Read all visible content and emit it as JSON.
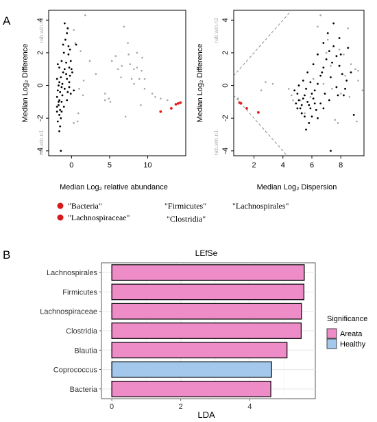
{
  "panels": {
    "a_label": "A",
    "b_label": "B"
  },
  "legend_a": {
    "items": [
      {
        "text": "\"Bacteria\"",
        "marker": true
      },
      {
        "text": "\"Lachnospiraceae\"",
        "marker": true
      },
      {
        "text": "\"Firmicutes\"",
        "marker": false
      },
      {
        "text": "\"Clostridia\"",
        "marker": false
      },
      {
        "text": "\"Lachnospirales\"",
        "marker": false
      }
    ],
    "marker_color": "#d7191c"
  },
  "chart_data": [
    {
      "type": "scatter",
      "title": "",
      "xlabel": "Median  Log₂  relative abundance",
      "ylabel": "Median  Log₂  Difference",
      "side_label_top": "rab.win.n2",
      "side_label_bottom": "rab.win.n1",
      "xlim": [
        -3,
        15
      ],
      "ylim": [
        -4.3,
        4.6
      ],
      "xticks": [
        0,
        5,
        10
      ],
      "yticks": [
        -4,
        -2,
        0,
        2,
        4
      ],
      "colors": {
        "black": "#000000",
        "grey": "#a6a6a6",
        "red": "#e41a1c"
      },
      "series": [
        {
          "color": "red",
          "points": [
            [
              11.7,
              -1.6
            ],
            [
              13.1,
              -1.4
            ],
            [
              13.7,
              -1.15
            ],
            [
              14.0,
              -1.1
            ],
            [
              14.3,
              -1.05
            ]
          ]
        },
        {
          "color": "grey",
          "points": [
            [
              1.8,
              4.3
            ],
            [
              0.3,
              3.4
            ],
            [
              0.5,
              2.6
            ],
            [
              1.2,
              2.1
            ],
            [
              2.4,
              1.5
            ],
            [
              3.2,
              0.7
            ],
            [
              1.6,
              0.3
            ],
            [
              1.0,
              -0.2
            ],
            [
              1.5,
              -0.6
            ],
            [
              0.9,
              -1.7
            ],
            [
              0.8,
              -2.2
            ],
            [
              0.3,
              -2.3
            ],
            [
              4.4,
              -0.9
            ],
            [
              4.9,
              -0.8
            ],
            [
              4.4,
              -0.5
            ],
            [
              5.1,
              -1.0
            ],
            [
              5.3,
              1.5
            ],
            [
              5.8,
              1.8
            ],
            [
              6.1,
              1.0
            ],
            [
              6.9,
              3.6
            ],
            [
              7.4,
              2.6
            ],
            [
              7.5,
              1.9
            ],
            [
              6.6,
              1.2
            ],
            [
              7.7,
              1.3
            ],
            [
              8.2,
              1.0
            ],
            [
              8.6,
              1.1
            ],
            [
              8.9,
              0.4
            ],
            [
              9.2,
              0.9
            ],
            [
              9.6,
              -0.2
            ],
            [
              9.1,
              -1.2
            ],
            [
              10.6,
              -0.5
            ],
            [
              11.0,
              -0.7
            ],
            [
              11.7,
              -0.8
            ],
            [
              12.6,
              -0.9
            ],
            [
              7.1,
              -1.9
            ],
            [
              6.5,
              0.5
            ],
            [
              8.2,
              0.1
            ],
            [
              8.6,
              2.0
            ],
            [
              9.3,
              1.7
            ],
            [
              7.9,
              0.4
            ],
            [
              9.6,
              0.4
            ]
          ]
        },
        {
          "color": "black",
          "points": [
            [
              -0.9,
              3.8
            ],
            [
              -0.6,
              3.2
            ],
            [
              -1.1,
              2.5
            ],
            [
              -0.4,
              2.4
            ],
            [
              -0.2,
              2.2
            ],
            [
              -1.0,
              2.0
            ],
            [
              -0.4,
              1.9
            ],
            [
              -1.3,
              1.5
            ],
            [
              -0.7,
              1.4
            ],
            [
              -0.1,
              1.5
            ],
            [
              -1.6,
              1.1
            ],
            [
              -0.9,
              1.0
            ],
            [
              -0.3,
              1.1
            ],
            [
              0.1,
              0.8
            ],
            [
              -1.9,
              0.4
            ],
            [
              -1.4,
              0.5
            ],
            [
              -0.6,
              0.4
            ],
            [
              -1.7,
              0.0
            ],
            [
              -1.3,
              -0.1
            ],
            [
              -1.8,
              -0.3
            ],
            [
              -1.5,
              -0.4
            ],
            [
              -1.2,
              -0.6
            ],
            [
              -1.9,
              -0.7
            ],
            [
              -1.6,
              -0.9
            ],
            [
              -1.3,
              -1.0
            ],
            [
              -1.7,
              -1.2
            ],
            [
              -1.5,
              -1.5
            ],
            [
              -1.9,
              -1.6
            ],
            [
              -1.6,
              -1.8
            ],
            [
              -1.4,
              -2.0
            ],
            [
              -1.8,
              -2.2
            ],
            [
              -1.5,
              -2.5
            ],
            [
              -1.6,
              -2.8
            ],
            [
              -1.4,
              -4.0
            ],
            [
              -0.5,
              -0.4
            ],
            [
              -0.1,
              -0.5
            ],
            [
              0.3,
              -0.3
            ],
            [
              -0.6,
              -0.9
            ],
            [
              -0.3,
              0.2
            ],
            [
              0.6,
              2.5
            ],
            [
              -0.8,
              2.8
            ],
            [
              -0.5,
              3.5
            ],
            [
              -1.1,
              0.8
            ],
            [
              -0.9,
              -0.2
            ],
            [
              -1.0,
              -1.3
            ],
            [
              -0.2,
              0.6
            ],
            [
              -1.8,
              1.3
            ],
            [
              -1.6,
              0.2
            ],
            [
              -1.2,
              0.1
            ],
            [
              -1.7,
              -1.0
            ],
            [
              -1.9,
              -1.3
            ],
            [
              -1.3,
              -1.6
            ],
            [
              -0.7,
              0.7
            ],
            [
              -0.3,
              -0.1
            ],
            [
              0.0,
              1.0
            ]
          ]
        }
      ]
    },
    {
      "type": "scatter",
      "title": "",
      "xlabel": "Median  Log₂  Dispersion",
      "ylabel": "Median  Log₂  Difference",
      "side_label_top": "rab.win.n2",
      "side_label_bottom": "rab.win.n1",
      "xlim": [
        0.6,
        9.6
      ],
      "ylim": [
        -4.3,
        4.6
      ],
      "xticks": [
        2,
        4,
        6,
        8
      ],
      "yticks": [
        -4,
        -2,
        0,
        2,
        4
      ],
      "diagonal_lines": [
        {
          "slope": 1,
          "intercept": 0
        },
        {
          "slope": -1,
          "intercept": 0
        }
      ],
      "colors": {
        "black": "#000000",
        "grey": "#a6a6a6",
        "red": "#e41a1c",
        "line": "#8c8c8c"
      },
      "series": [
        {
          "color": "red",
          "points": [
            [
              1.0,
              -1.05
            ],
            [
              1.1,
              -1.1
            ],
            [
              1.5,
              -1.4
            ],
            [
              2.3,
              -1.65
            ]
          ]
        },
        {
          "color": "grey",
          "points": [
            [
              6.6,
              4.3
            ],
            [
              6.4,
              3.6
            ],
            [
              7.1,
              2.8
            ],
            [
              8.5,
              3.5
            ],
            [
              7.0,
              2.0
            ],
            [
              7.9,
              2.2
            ],
            [
              8.2,
              1.9
            ],
            [
              8.7,
              1.3
            ],
            [
              9.0,
              1.0
            ],
            [
              9.2,
              0.3
            ],
            [
              9.5,
              -0.3
            ],
            [
              8.6,
              -0.7
            ],
            [
              8.0,
              -0.5
            ],
            [
              7.4,
              -0.2
            ],
            [
              6.8,
              0.1
            ],
            [
              5.9,
              -0.7
            ],
            [
              5.5,
              -1.7
            ],
            [
              4.6,
              -0.6
            ],
            [
              4.4,
              -0.2
            ],
            [
              2.5,
              -0.3
            ],
            [
              0.9,
              -0.8
            ],
            [
              7.6,
              -2.1
            ],
            [
              7.8,
              -2.3
            ],
            [
              9.1,
              -2.2
            ],
            [
              8.3,
              0.6
            ],
            [
              9.2,
              0.9
            ],
            [
              7.3,
              1.2
            ],
            [
              6.1,
              0.4
            ],
            [
              5.2,
              -0.9
            ],
            [
              4.7,
              -0.9
            ],
            [
              3.3,
              0.1
            ],
            [
              2.8,
              0.2
            ]
          ]
        },
        {
          "color": "black",
          "points": [
            [
              5.1,
              -0.9
            ],
            [
              5.0,
              -0.5
            ],
            [
              5.3,
              -1.2
            ],
            [
              5.5,
              -0.6
            ],
            [
              5.7,
              -1.0
            ],
            [
              5.9,
              -1.4
            ],
            [
              6.1,
              -0.8
            ],
            [
              6.2,
              -0.3
            ],
            [
              6.4,
              0.1
            ],
            [
              6.6,
              0.6
            ],
            [
              6.8,
              1.1
            ],
            [
              7.0,
              1.6
            ],
            [
              7.2,
              2.1
            ],
            [
              7.5,
              2.4
            ],
            [
              7.7,
              1.8
            ],
            [
              7.9,
              1.2
            ],
            [
              8.1,
              0.7
            ],
            [
              8.4,
              0.3
            ],
            [
              8.9,
              -1.8
            ],
            [
              8.2,
              -0.6
            ],
            [
              7.7,
              -0.1
            ],
            [
              7.3,
              0.5
            ],
            [
              6.9,
              -0.5
            ],
            [
              6.6,
              -1.1
            ],
            [
              6.3,
              -1.5
            ],
            [
              6.0,
              -1.9
            ],
            [
              5.8,
              -2.3
            ],
            [
              5.6,
              -2.7
            ],
            [
              5.3,
              -1.7
            ],
            [
              5.0,
              -1.4
            ],
            [
              4.8,
              -0.3
            ],
            [
              5.1,
              0.0
            ],
            [
              5.4,
              0.3
            ],
            [
              5.7,
              0.8
            ],
            [
              6.1,
              1.3
            ],
            [
              6.4,
              1.9
            ],
            [
              6.8,
              2.6
            ],
            [
              7.1,
              3.2
            ],
            [
              7.5,
              3.8
            ],
            [
              7.9,
              2.9
            ],
            [
              7.3,
              -4.0
            ],
            [
              6.4,
              -2.0
            ],
            [
              6.8,
              -1.4
            ],
            [
              7.2,
              -0.9
            ],
            [
              5.6,
              -0.2
            ],
            [
              5.9,
              0.2
            ],
            [
              6.7,
              0.8
            ],
            [
              7.4,
              1.4
            ],
            [
              8.0,
              1.9
            ],
            [
              8.5,
              2.3
            ],
            [
              8.7,
              0.8
            ],
            [
              8.3,
              -0.2
            ],
            [
              7.8,
              -0.6
            ],
            [
              6.0,
              -0.5
            ],
            [
              5.4,
              -0.8
            ],
            [
              4.9,
              -1.1
            ],
            [
              5.2,
              -1.4
            ],
            [
              5.5,
              -1.9
            ],
            [
              5.8,
              -1.2
            ],
            [
              6.2,
              -1.1
            ]
          ]
        }
      ]
    },
    {
      "type": "bar",
      "orientation": "horizontal",
      "title": "LEfSe",
      "xlabel": "LDA",
      "ylabel": "",
      "categories": [
        "Lachnospirales",
        "Firmicutes",
        "Lachnospiraceae",
        "Clostridia",
        "Blautia",
        "Coprococcus",
        "Bacteria"
      ],
      "values": [
        5.58,
        5.57,
        5.5,
        5.49,
        5.08,
        4.63,
        4.61
      ],
      "groups": [
        "Areata",
        "Areata",
        "Areata",
        "Areata",
        "Areata",
        "Healthy",
        "Areata"
      ],
      "xlim": [
        -0.3,
        5.9
      ],
      "xticks": [
        0,
        2,
        4
      ],
      "grid": true,
      "legend": {
        "title": "Significance",
        "position": "right",
        "entries": [
          {
            "name": "Areata",
            "color": "#ee8cc7"
          },
          {
            "name": "Healthy",
            "color": "#a4c8eb"
          }
        ]
      },
      "panel_background": "#ffffff",
      "grid_color": "#ebebeb"
    }
  ]
}
